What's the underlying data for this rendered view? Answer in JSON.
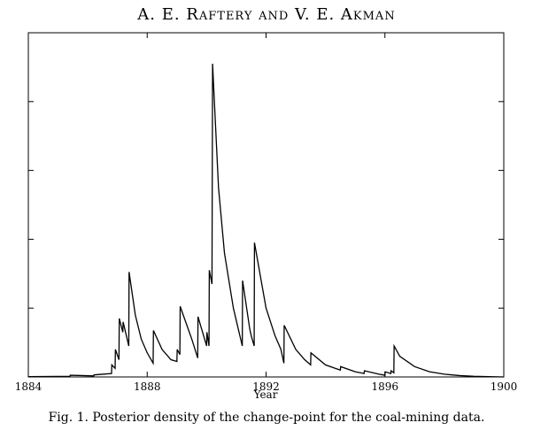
{
  "header": {
    "running_head": "A. E. Raftery and V. E. Akman"
  },
  "caption": "Fig. 1. Posterior density of the change-point for the coal-mining data.",
  "chart_data": {
    "type": "line",
    "title": "",
    "xlabel": "Year",
    "ylabel": "",
    "xlim": [
      1884,
      1900
    ],
    "ylim": [
      0,
      1.0
    ],
    "grid": false,
    "x_ticks": [
      1884,
      1888,
      1892,
      1896,
      1900
    ],
    "x_tick_labels": [
      "1884",
      "1888",
      "1892",
      "1896",
      "1900"
    ],
    "y_ticks": [
      0.2,
      0.4,
      0.6,
      0.8
    ],
    "series": [
      {
        "values_description": "posterior density (jumps at accident dates with decays between)",
        "x": [
          1884.0,
          1885.4,
          1885.41,
          1886.2,
          1886.21,
          1886.8,
          1886.81,
          1886.92,
          1886.93,
          1887.05,
          1887.06,
          1887.18,
          1887.19,
          1887.38,
          1887.39,
          1887.6,
          1887.8,
          1888.0,
          1888.2,
          1888.21,
          1888.5,
          1888.8,
          1889.0,
          1889.01,
          1889.1,
          1889.11,
          1889.5,
          1889.7,
          1889.71,
          1890.0,
          1890.01,
          1890.08,
          1890.09,
          1890.18,
          1890.2,
          1890.4,
          1890.6,
          1890.9,
          1891.2,
          1891.21,
          1891.45,
          1891.5,
          1891.6,
          1891.61,
          1892.0,
          1892.3,
          1892.5,
          1892.6,
          1892.61,
          1893.0,
          1893.3,
          1893.5,
          1893.51,
          1894.0,
          1894.5,
          1894.51,
          1895.0,
          1895.3,
          1895.31,
          1895.8,
          1896.0,
          1896.01,
          1896.2,
          1896.21,
          1896.3,
          1896.31,
          1896.5,
          1897.0,
          1897.5,
          1898.0,
          1898.5,
          1899.0,
          1899.5,
          1900.0
        ],
        "y": [
          0.001,
          0.002,
          0.005,
          0.003,
          0.006,
          0.01,
          0.035,
          0.025,
          0.08,
          0.05,
          0.17,
          0.13,
          0.16,
          0.09,
          0.305,
          0.18,
          0.11,
          0.07,
          0.04,
          0.135,
          0.08,
          0.05,
          0.045,
          0.08,
          0.065,
          0.205,
          0.11,
          0.055,
          0.175,
          0.09,
          0.13,
          0.09,
          0.31,
          0.27,
          0.91,
          0.55,
          0.36,
          0.2,
          0.09,
          0.28,
          0.14,
          0.12,
          0.09,
          0.39,
          0.2,
          0.12,
          0.08,
          0.04,
          0.15,
          0.08,
          0.05,
          0.035,
          0.07,
          0.035,
          0.02,
          0.03,
          0.015,
          0.01,
          0.018,
          0.008,
          0.005,
          0.015,
          0.01,
          0.018,
          0.012,
          0.09,
          0.06,
          0.03,
          0.015,
          0.008,
          0.004,
          0.002,
          0.001,
          0.0
        ]
      }
    ]
  }
}
